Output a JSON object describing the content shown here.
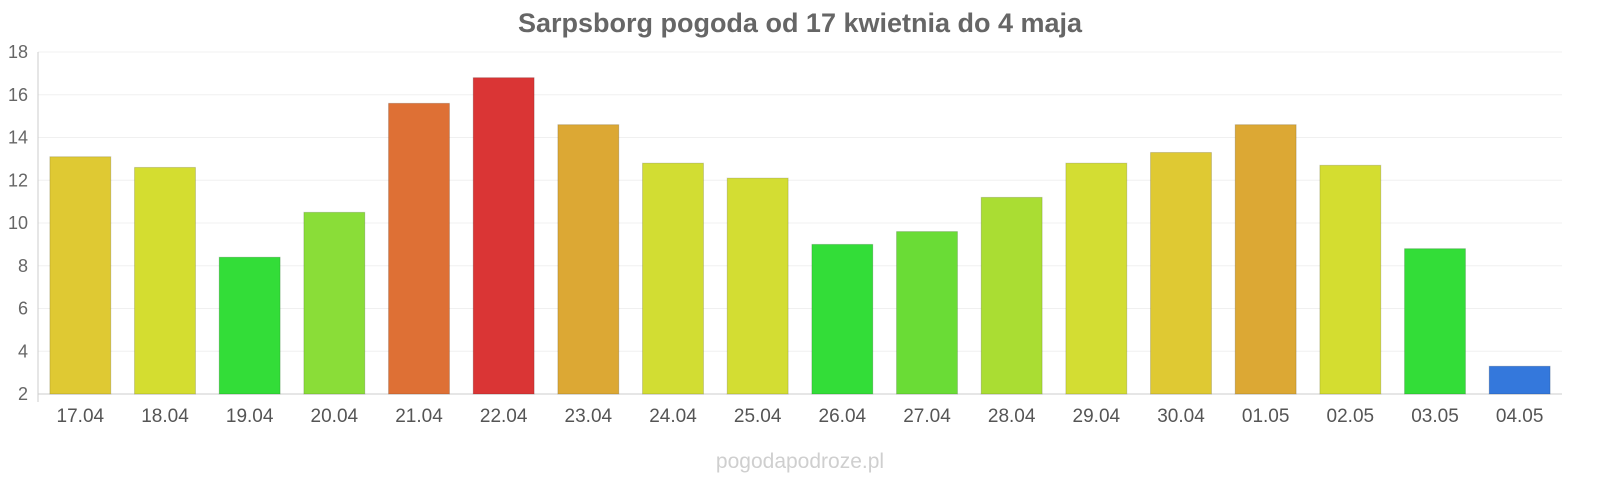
{
  "chart_data": {
    "type": "bar",
    "title": "Sarpsborg pogoda od 17 kwietnia do 4 maja",
    "categories": [
      "17.04",
      "18.04",
      "19.04",
      "20.04",
      "21.04",
      "22.04",
      "23.04",
      "24.04",
      "25.04",
      "26.04",
      "27.04",
      "28.04",
      "29.04",
      "30.04",
      "01.05",
      "02.05",
      "03.05",
      "04.05"
    ],
    "values": [
      13.1,
      12.6,
      8.4,
      10.5,
      15.6,
      16.8,
      14.6,
      12.8,
      12.1,
      9.0,
      9.6,
      11.2,
      12.8,
      13.3,
      14.6,
      12.7,
      8.8,
      3.3
    ],
    "colors": [
      "#dfc933",
      "#d4dd30",
      "#33dd38",
      "#8add38",
      "#de7035",
      "#da3535",
      "#dca834",
      "#d2dd33",
      "#d3dd33",
      "#33dd38",
      "#6adc36",
      "#aadd33",
      "#d3dd33",
      "#dfc933",
      "#dca834",
      "#d4dd30",
      "#33dd38",
      "#3478dc"
    ],
    "ylim": [
      2,
      18
    ],
    "yticks": [
      2,
      4,
      6,
      8,
      10,
      12,
      14,
      16,
      18
    ],
    "grid": true,
    "xlabel": "",
    "ylabel": ""
  },
  "watermark": "pogodapodroze.pl"
}
